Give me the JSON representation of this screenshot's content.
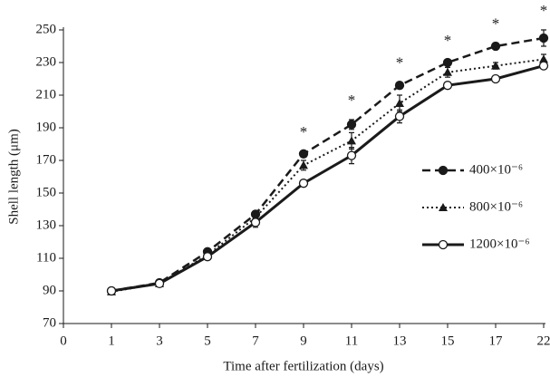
{
  "chart_data": {
    "type": "line",
    "x_label": "Time after fertilization (days)",
    "y_label": "Shell length (μm)",
    "categories": [
      "0",
      "1",
      "3",
      "5",
      "7",
      "9",
      "11",
      "13",
      "15",
      "17",
      "22"
    ],
    "ylim": [
      70,
      250
    ],
    "yticks": [
      70,
      90,
      110,
      130,
      150,
      170,
      190,
      210,
      230,
      250
    ],
    "legend": "right",
    "series": [
      {
        "name": "400×10⁻⁶",
        "color": "#1a1a1a",
        "dash": "dashed",
        "marker": "circle-filled",
        "values": [
          null,
          90,
          95,
          114,
          137,
          174,
          192,
          216,
          230,
          240,
          245
        ],
        "errors": [
          null,
          1,
          1,
          1.5,
          2,
          1.5,
          3,
          2,
          1.5,
          2,
          5
        ]
      },
      {
        "name": "800×10⁻⁶",
        "color": "#1a1a1a",
        "dash": "dotted",
        "marker": "triangle-filled",
        "values": [
          null,
          89.5,
          94.5,
          112,
          135,
          167,
          182,
          205,
          224,
          228,
          232
        ],
        "errors": [
          null,
          1,
          1,
          1,
          2,
          3,
          5,
          5,
          3,
          2,
          3
        ]
      },
      {
        "name": "1200×10⁻⁶",
        "color": "#1a1a1a",
        "dash": "solid",
        "marker": "circle-open",
        "values": [
          null,
          90,
          94.5,
          111,
          132,
          156,
          173,
          197,
          216,
          220,
          228
        ],
        "errors": [
          null,
          1,
          1,
          1,
          3,
          2,
          5,
          4,
          1.5,
          1.5,
          2
        ]
      }
    ],
    "annotations": [
      {
        "text": "*",
        "category": "9"
      },
      {
        "text": "*",
        "category": "11"
      },
      {
        "text": "*",
        "category": "13"
      },
      {
        "text": "*",
        "category": "15"
      },
      {
        "text": "*",
        "category": "17"
      },
      {
        "text": "*",
        "category": "22"
      }
    ]
  }
}
